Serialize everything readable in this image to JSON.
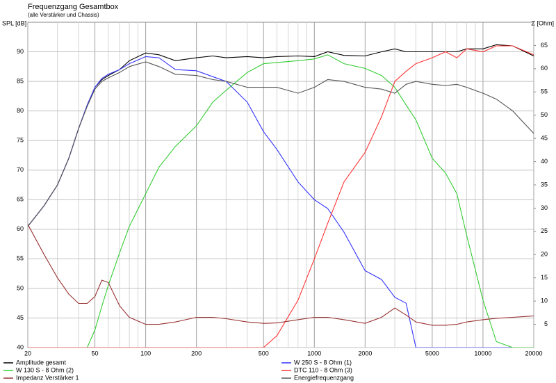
{
  "chart_data": {
    "type": "line",
    "title": "Frequenzgang Gesamtbox",
    "subtitle": "(alle Verstärker und Chassis)",
    "y_label": "SPL [dB]",
    "y2_label": "Z [Ohm]",
    "log_x": true,
    "grid": true,
    "legend": "bottom",
    "x": [
      20,
      25,
      30,
      35,
      40,
      45,
      50,
      55,
      60,
      70,
      80,
      100,
      120,
      150,
      200,
      250,
      300,
      400,
      500,
      600,
      800,
      1000,
      1200,
      1500,
      2000,
      2500,
      3000,
      3500,
      4000,
      5000,
      6000,
      7000,
      8000,
      10000,
      12000,
      15000,
      20000
    ],
    "series": [
      {
        "name": "Amplitude gesamt",
        "color": "#000000",
        "values": [
          60.5,
          64,
          67.5,
          72,
          77,
          81,
          84,
          85.3,
          86,
          87,
          88.5,
          89.8,
          89.5,
          88.5,
          89,
          89.3,
          89,
          89.2,
          89,
          89.2,
          89.3,
          89.2,
          90,
          89.4,
          89.3,
          90,
          90.5,
          90,
          90,
          90,
          90,
          90,
          90.5,
          90.5,
          91.2,
          91,
          89.3
        ]
      },
      {
        "name": "W 250 S - 8 Ohm  (1)",
        "color": "#3333ff",
        "values": [
          60.5,
          64,
          67.5,
          72,
          77,
          81,
          84,
          85.5,
          86.2,
          87,
          88,
          89.2,
          89,
          87,
          86.8,
          85.8,
          85,
          81.5,
          76.5,
          73.5,
          68,
          65,
          63.5,
          59.5,
          53,
          51.5,
          48.5,
          47.5,
          40,
          40,
          40,
          40,
          40,
          40,
          40,
          40,
          40
        ]
      },
      {
        "name": "W 130 S - 8 Ohm (2)",
        "color": "#33cc33",
        "values": [
          40,
          40,
          40,
          40,
          40,
          40,
          43,
          47,
          50.5,
          56,
          60.5,
          66,
          70.5,
          74,
          77.5,
          81.5,
          83.5,
          86.5,
          88,
          88.2,
          88.5,
          88.8,
          89.5,
          88,
          87.2,
          86,
          84,
          81,
          78.5,
          72,
          69.5,
          66,
          59,
          48,
          41,
          40,
          40
        ]
      },
      {
        "name": "DTC 110 - 8 Ohm (3)",
        "color": "#ff3333",
        "values": [
          40,
          40,
          40,
          40,
          40,
          40,
          40,
          40,
          40,
          40,
          40,
          40,
          40,
          40,
          40,
          40,
          40,
          40,
          40,
          42,
          48,
          55,
          61,
          68,
          73,
          79,
          85,
          86.7,
          88,
          89,
          90,
          89,
          90.5,
          90,
          91,
          91,
          89.5
        ]
      },
      {
        "name": "Impedanz Verstärker 1",
        "color": "#993333",
        "axis": "y2",
        "values": [
          26.5,
          20,
          15,
          11.5,
          9.5,
          9.5,
          11,
          14.5,
          14,
          9,
          6.5,
          5,
          5,
          5.5,
          6.5,
          6.5,
          6.2,
          5.5,
          5.2,
          5.3,
          6,
          6.5,
          6.5,
          6,
          5.2,
          6.5,
          8.5,
          7,
          5.5,
          4.8,
          4.8,
          5,
          5.5,
          6,
          6.3,
          6.5,
          6.8
        ]
      },
      {
        "name": "Energiefrequenzgang",
        "color": "#555555",
        "values": [
          60.5,
          64,
          67.5,
          72,
          77,
          80.8,
          83.7,
          85,
          85.6,
          86.5,
          87.5,
          88.3,
          87.5,
          86.2,
          86,
          85.3,
          85,
          84,
          84,
          84,
          83,
          84,
          85.3,
          85,
          84,
          83.7,
          83,
          84.5,
          85,
          84.5,
          84.3,
          84.5,
          84,
          83,
          82,
          80,
          76.2
        ]
      }
    ],
    "xlim": [
      20,
      20000
    ],
    "xticks": [
      20,
      50,
      100,
      200,
      500,
      1000,
      2000,
      5000,
      10000,
      20000
    ],
    "xminorticks": [
      30,
      40,
      60,
      70,
      80,
      90,
      300,
      400,
      600,
      700,
      800,
      900,
      3000,
      4000,
      6000,
      7000,
      8000,
      9000
    ],
    "ylim": [
      40,
      95
    ],
    "yticks": [
      40,
      45,
      50,
      55,
      60,
      65,
      70,
      75,
      80,
      85,
      90
    ],
    "y2lim": [
      0,
      70
    ],
    "y2ticks": [
      5,
      10,
      15,
      20,
      25,
      30,
      35,
      40,
      45,
      50,
      55,
      60,
      65
    ]
  }
}
